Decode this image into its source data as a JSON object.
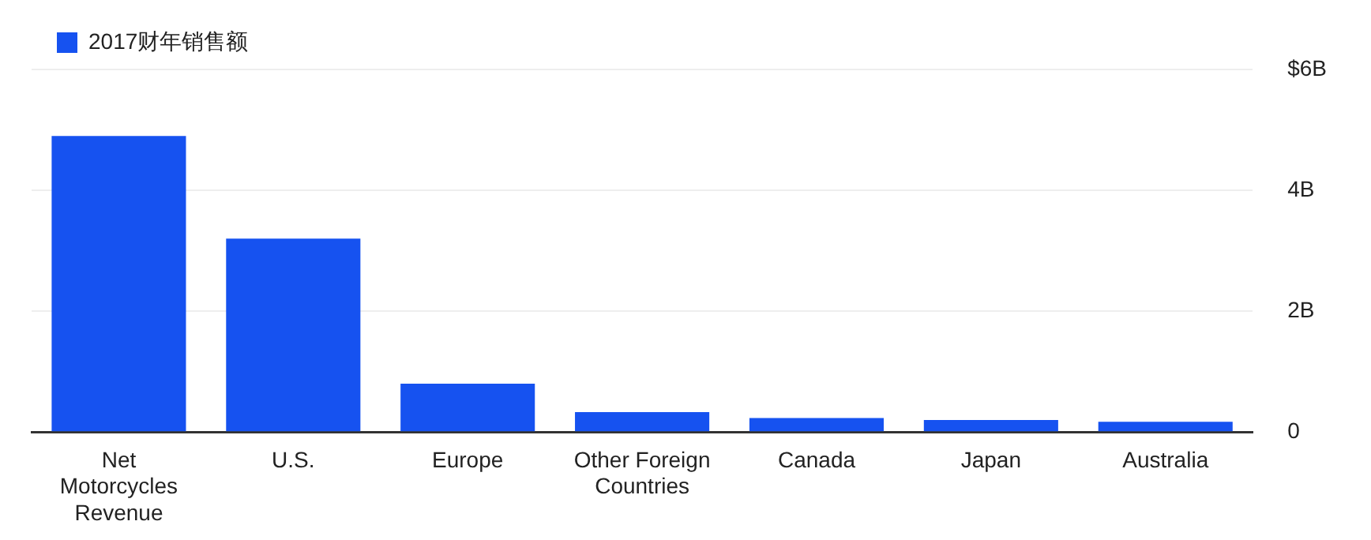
{
  "chart_data": {
    "type": "bar",
    "categories": [
      "Net Motorcycles Revenue",
      "U.S.",
      "Europe",
      "Other Foreign Countries",
      "Canada",
      "Japan",
      "Australia"
    ],
    "series": [
      {
        "name": "2017财年销售额",
        "color": "#1652f0",
        "values": [
          4.9,
          3.2,
          0.8,
          0.33,
          0.23,
          0.2,
          0.17
        ]
      }
    ],
    "ylim": [
      0,
      6
    ],
    "yticks": [
      {
        "value": 0,
        "label": "0"
      },
      {
        "value": 2,
        "label": "2B"
      },
      {
        "value": 4,
        "label": "4B"
      },
      {
        "value": 6,
        "label": "$6B"
      }
    ],
    "grid": "y",
    "legend": "top left"
  }
}
